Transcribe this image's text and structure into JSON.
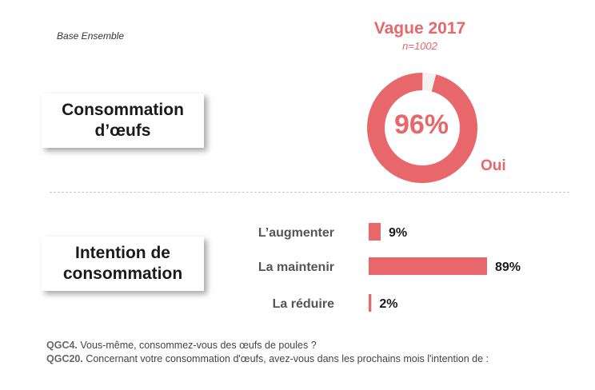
{
  "base_label": "Base Ensemble",
  "wave": {
    "title": "Vague 2017",
    "n": "n=1002"
  },
  "sections": {
    "consumption": {
      "line1": "Consommation",
      "line2": "d’œufs"
    },
    "intention": {
      "line1": "Intention de",
      "line2": "consommation"
    }
  },
  "colors": {
    "accent": "#e8676b",
    "remainder": "#f2f2f2"
  },
  "chart_data": [
    {
      "type": "pie",
      "slices": [
        {
          "label": "Oui",
          "value": 96
        },
        {
          "label": "",
          "value": 4
        }
      ],
      "center_label": "96%",
      "caption": "Oui"
    },
    {
      "type": "bar",
      "orientation": "horizontal",
      "categories": [
        "L’augmenter",
        "La maintenir",
        "La réduire"
      ],
      "values": [
        9,
        89,
        2
      ],
      "value_labels": [
        "9%",
        "89%",
        "2%"
      ],
      "xlim": [
        0,
        100
      ]
    }
  ],
  "footnotes": [
    {
      "code": "QGC4.",
      "text": " Vous-même, consommez-vous des œufs de poules ?"
    },
    {
      "code": "QGC20.",
      "text": " Concernant votre consommation d'œufs, avez-vous dans les prochains mois l'intention de :"
    }
  ]
}
